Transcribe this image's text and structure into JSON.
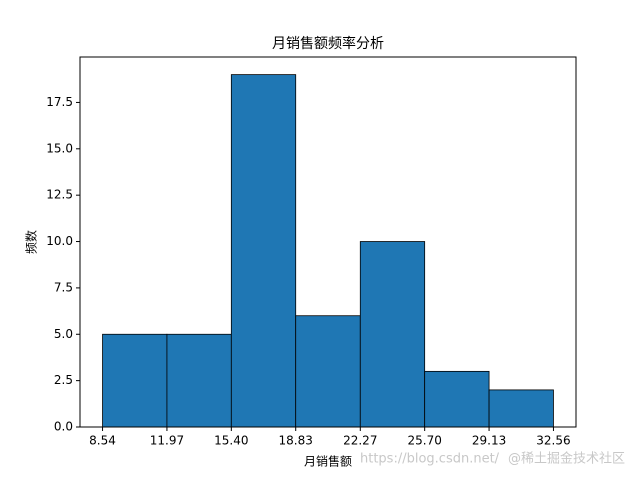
{
  "chart_data": {
    "type": "histogram",
    "title": "月销售额频率分析",
    "x_label": "月销售额",
    "y_label": "频数",
    "bins": [
      8.54,
      11.97,
      15.4,
      18.83,
      22.27,
      25.7,
      29.13,
      32.56
    ],
    "values": [
      5,
      5,
      19,
      6,
      10,
      3,
      2
    ],
    "color": "#1f77b4",
    "xlim": [
      7.339,
      33.761
    ],
    "xticks": [
      8.54,
      11.97,
      {
        "value": 15.4,
        "label": "15.40"
      },
      18.83,
      22.27,
      {
        "value": 25.7,
        "label": "25.70"
      },
      29.13,
      32.56
    ],
    "ylim": [
      0,
      19.95
    ],
    "yticks": [
      {
        "value": 0,
        "label": "0.0"
      },
      2.5,
      {
        "value": 5,
        "label": "5.0"
      },
      7.5,
      {
        "value": 10,
        "label": "10.0"
      },
      12.5,
      {
        "value": 15,
        "label": "15.0"
      },
      17.5
    ],
    "grid": false
  },
  "watermark": {
    "url": "https://blog.csdn.net/",
    "brand": "@稀土掘金技术社区"
  }
}
